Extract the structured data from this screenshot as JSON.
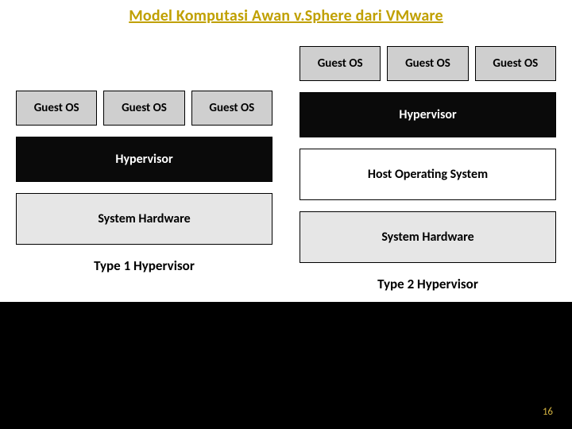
{
  "title": "Model Komputasi Awan v.Sphere dari VMware",
  "page_number": "16",
  "colors": {
    "slide_bg": "#000000",
    "panel_bg": "#ffffff",
    "title_color": "#c0a000",
    "guest_bg": "#cfcfcf",
    "hypervisor_bg": "#0a0a0a",
    "hypervisor_text": "#ffffff",
    "host_bg": "#ffffff",
    "hardware_bg": "#e6e6e6",
    "text_color": "#000000",
    "border": "#000000",
    "pagenum_color": "#d0b040"
  },
  "typography": {
    "title_fontsize": 20,
    "title_weight": "bold",
    "title_underline": true,
    "box_fontsize": 16,
    "box_weight": "bold",
    "guest_fontsize": 15,
    "type_label_fontsize": 17,
    "pagenum_fontsize": 13,
    "font_family": "Calibri, Arial, sans-serif"
  },
  "diagram": {
    "type": "infographic",
    "columns": [
      {
        "type_label": "Type 1 Hypervisor",
        "layers": [
          {
            "kind": "guest-row",
            "cells": [
              "Guest OS",
              "Guest OS",
              "Guest OS"
            ]
          },
          {
            "kind": "hypervisor",
            "label": "Hypervisor"
          },
          {
            "kind": "hardware",
            "label": "System Hardware"
          }
        ]
      },
      {
        "type_label": "Type 2 Hypervisor",
        "layers": [
          {
            "kind": "guest-row",
            "cells": [
              "Guest OS",
              "Guest OS",
              "Guest OS"
            ]
          },
          {
            "kind": "hypervisor",
            "label": "Hypervisor"
          },
          {
            "kind": "host",
            "label": "Host Operating System"
          },
          {
            "kind": "hardware",
            "label": "System Hardware"
          }
        ]
      }
    ]
  }
}
